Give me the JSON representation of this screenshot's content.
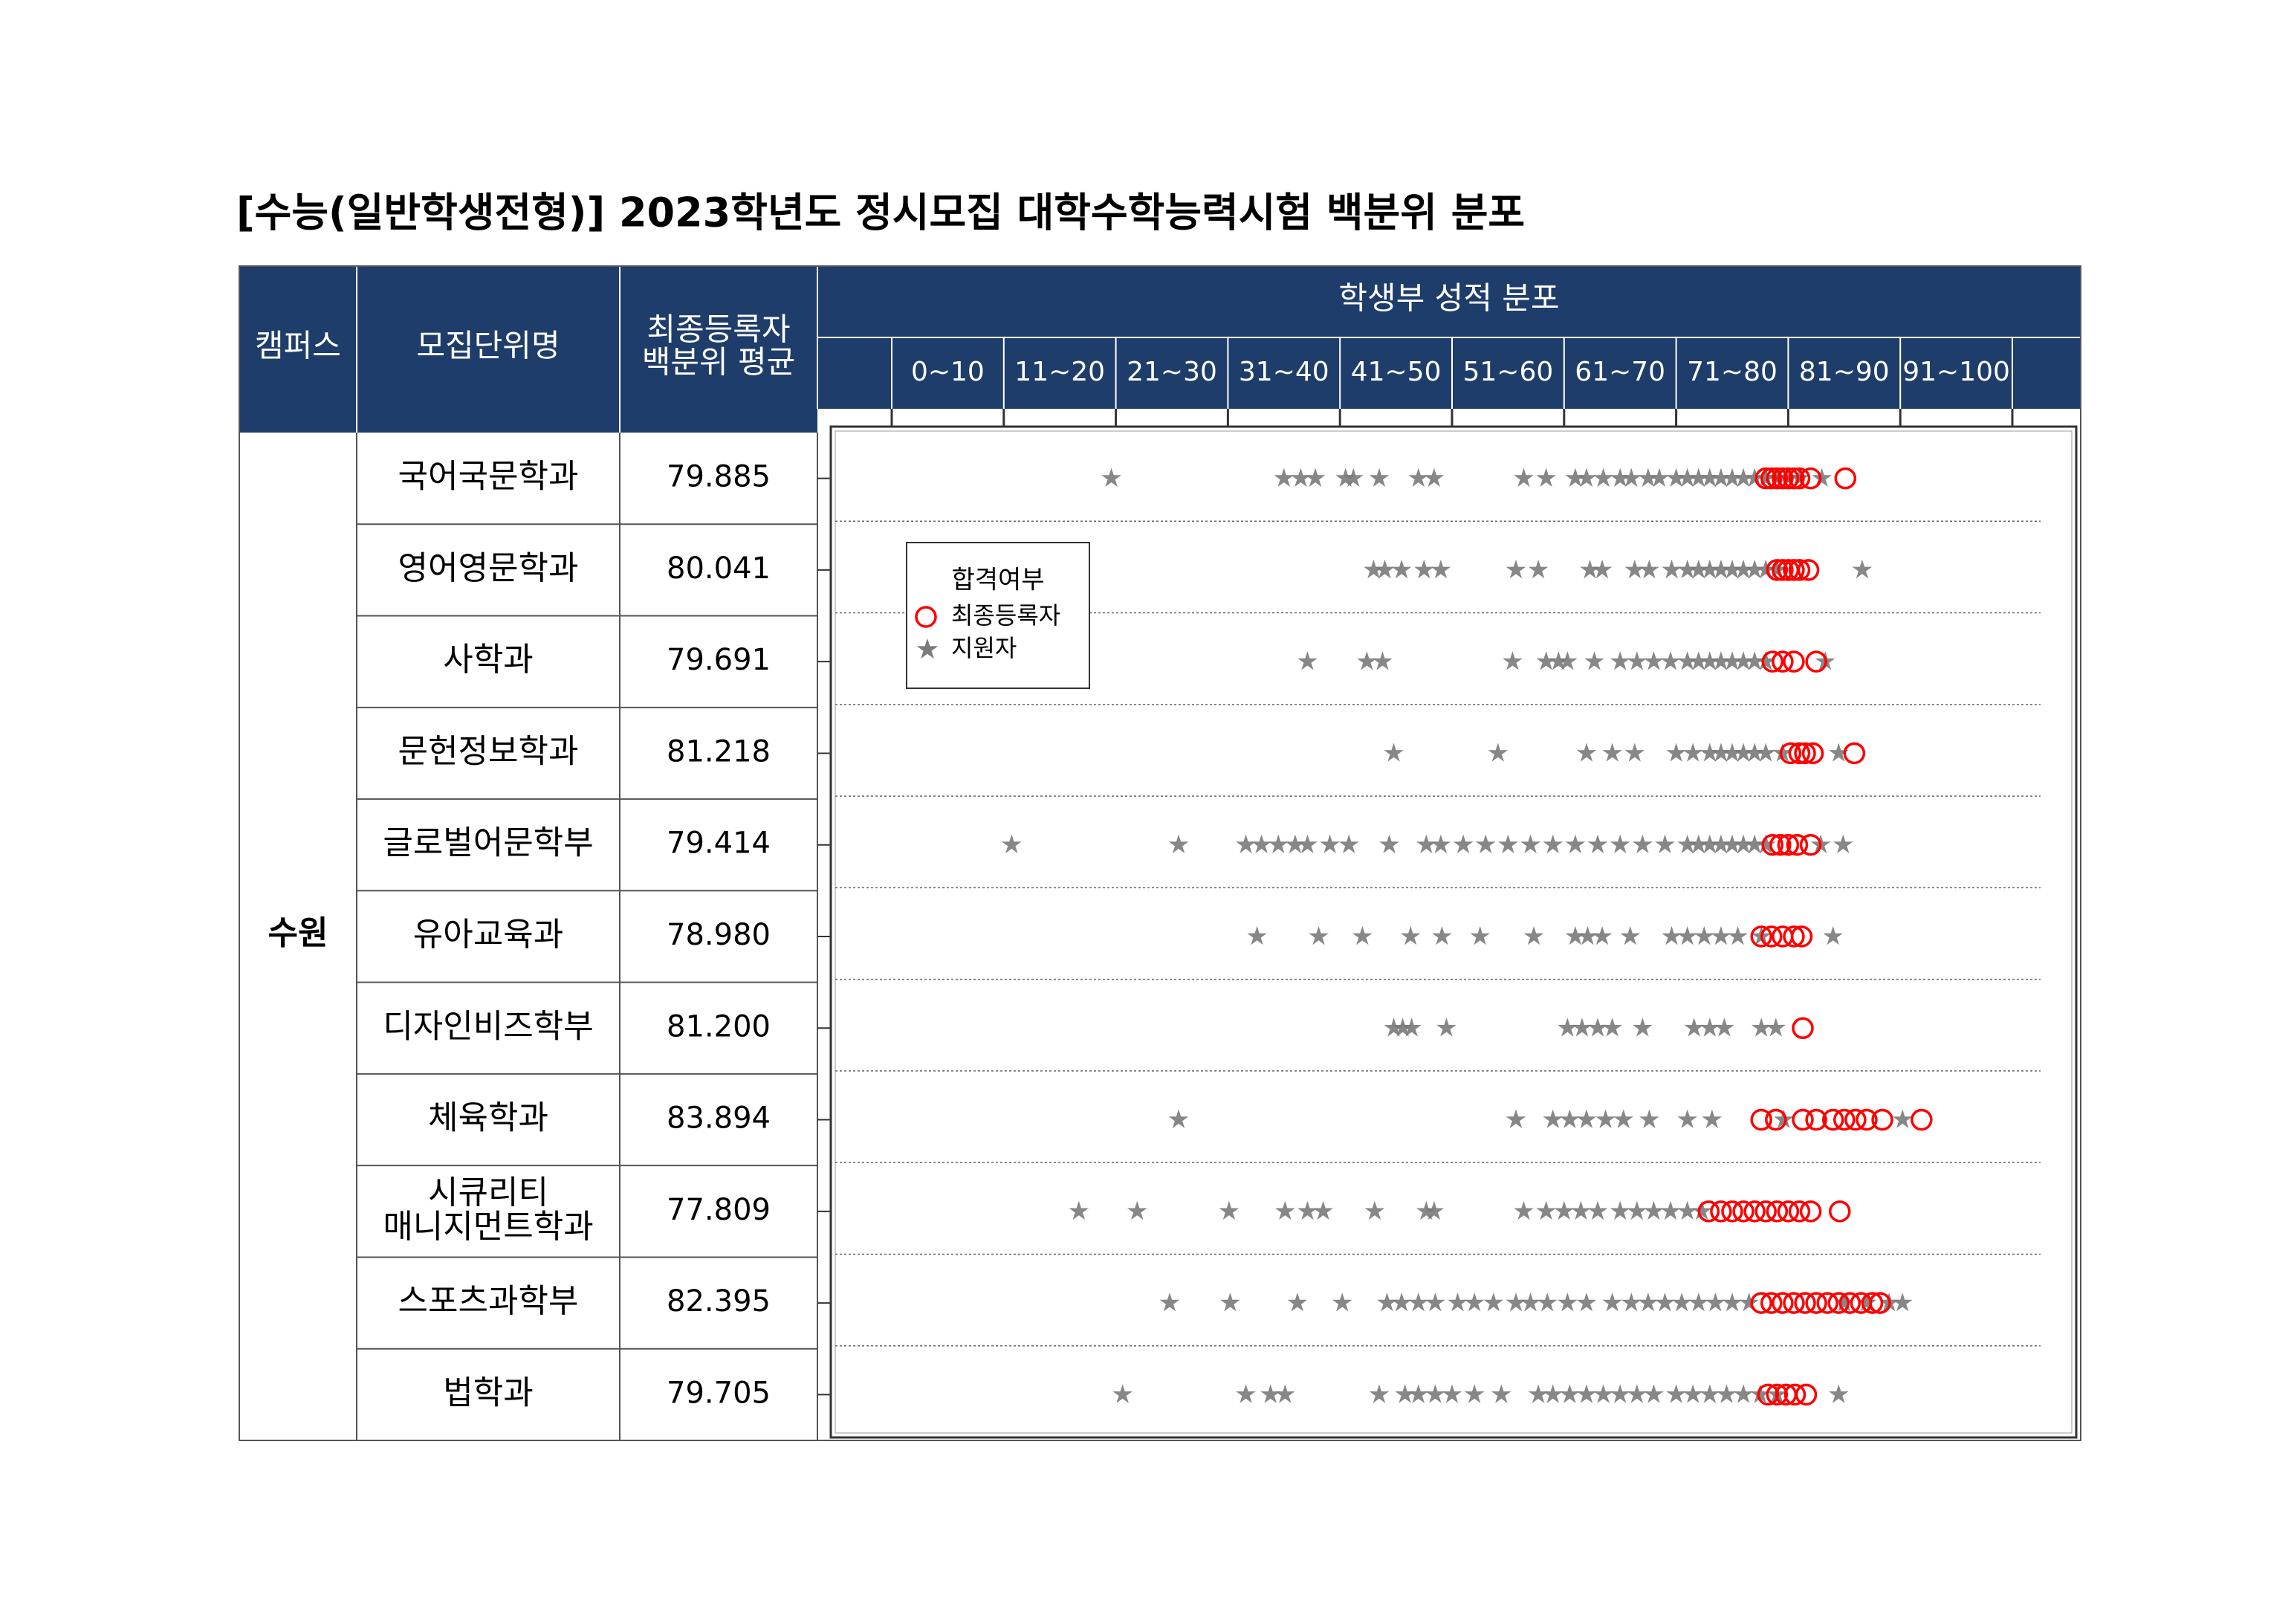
{
  "header": {
    "title": "[수능(일반학생전형)]  2023학년도  정시모집  대학수학능력시험  백분위  분포"
  },
  "table": {
    "campus_header": "캠퍼스",
    "unit_header": "모집단위명",
    "average_header": [
      "최종등록자",
      "백분위 평균"
    ],
    "distribution_header": "학생부 성적 분포",
    "bins": [
      "0~10",
      "11~20",
      "21~30",
      "31~40",
      "41~50",
      "51~60",
      "61~70",
      "71~80",
      "81~90",
      "91~100"
    ],
    "campus": "수원",
    "rows": [
      {
        "name": [
          "국어국문학과"
        ],
        "average": "79.885"
      },
      {
        "name": [
          "영어영문학과"
        ],
        "average": "80.041"
      },
      {
        "name": [
          "사학과"
        ],
        "average": "79.691"
      },
      {
        "name": [
          "문헌정보학과"
        ],
        "average": "81.218"
      },
      {
        "name": [
          "글로벌어문학부"
        ],
        "average": "79.414"
      },
      {
        "name": [
          "유아교육과"
        ],
        "average": "78.980"
      },
      {
        "name": [
          "디자인비즈학부"
        ],
        "average": "81.200"
      },
      {
        "name": [
          "체육학과"
        ],
        "average": "83.894"
      },
      {
        "name": [
          "시큐리티",
          "매니지먼트학과"
        ],
        "average": "77.809"
      },
      {
        "name": [
          "스포츠과학부"
        ],
        "average": "82.395"
      },
      {
        "name": [
          "법학과"
        ],
        "average": "79.705"
      }
    ]
  },
  "distribution": {
    "xlim": [
      0,
      100
    ],
    "xticks": [
      0,
      10,
      20,
      30,
      40,
      50,
      60,
      70,
      80,
      90,
      100
    ],
    "legend": {
      "title": "합격여부",
      "registrant": "최종등록자",
      "applicant": "지원자"
    },
    "registrant_color": "#ff0000",
    "applicant_color": "#7a7a7a",
    "rows": [
      {
        "applicants": [
          19.6,
          35,
          36.5,
          37.8,
          40.5,
          41.2,
          43.5,
          47,
          48.4,
          56.4,
          58.4,
          61,
          62,
          63.5,
          65,
          66,
          67.5,
          68.5,
          70,
          71,
          72,
          73,
          74,
          75,
          76,
          77,
          78,
          79,
          80,
          81,
          83
        ],
        "registrants": [
          78,
          78.5,
          79,
          79.5,
          80,
          80.5,
          81,
          82,
          85.1
        ]
      },
      {
        "applicants": [
          43,
          44,
          45.5,
          47.5,
          49,
          55.7,
          57.7,
          62.3,
          63.4,
          66.3,
          67.6,
          69.6,
          71,
          72,
          73,
          74,
          75,
          76,
          77,
          78,
          79,
          86.6
        ],
        "registrants": [
          79,
          79.5,
          80,
          80.5,
          81,
          81.8
        ]
      },
      {
        "applicants": [
          37.1,
          42.4,
          43.8,
          55.4,
          58.4,
          59.5,
          60.3,
          62.7,
          65,
          66.5,
          68,
          69.5,
          71,
          72,
          73,
          74,
          75,
          76,
          77,
          78,
          83.3
        ],
        "registrants": [
          78.6,
          79.5,
          80.5,
          82.5
        ]
      },
      {
        "applicants": [
          44.8,
          54.1,
          62,
          64.3,
          66.3,
          70,
          71.5,
          73,
          74,
          75,
          76,
          77,
          78,
          79.5,
          84.5
        ],
        "registrants": [
          80.2,
          81,
          81.5,
          82.2,
          85.9
        ]
      },
      {
        "applicants": [
          10.7,
          25.6,
          31.6,
          33,
          34.5,
          36,
          37.1,
          39.1,
          40.8,
          44.4,
          47.7,
          49,
          51,
          53,
          55,
          57,
          59,
          61,
          63,
          65,
          67,
          69,
          71,
          72,
          73,
          74,
          75,
          76,
          77,
          78,
          82.9,
          84.9
        ],
        "registrants": [
          78.6,
          79.3,
          80,
          80.8,
          82
        ]
      },
      {
        "applicants": [
          32.6,
          38.1,
          42,
          46.3,
          49.1,
          52.5,
          57.3,
          61,
          62.1,
          63.4,
          65.9,
          69.6,
          71,
          72.5,
          74,
          75.5,
          77.6,
          84
        ],
        "registrants": [
          77.6,
          78.5,
          79.5,
          80.5,
          81.2
        ]
      },
      {
        "applicants": [
          44.8,
          45.6,
          46.4,
          49.5,
          60.3,
          61.6,
          63,
          64.3,
          67,
          71.6,
          73,
          74.3,
          77.6,
          78.9
        ],
        "registrants": [
          81.3
        ]
      },
      {
        "applicants": [
          25.6,
          55.7,
          59,
          60.5,
          62,
          63.7,
          65.3,
          67.6,
          71,
          73.2,
          79.6,
          90.2
        ],
        "registrants": [
          77.6,
          78.9,
          81.3,
          82.5,
          84,
          85,
          86,
          87,
          88.4,
          91.9
        ]
      },
      {
        "applicants": [
          16.7,
          21.9,
          30.1,
          35.1,
          37.1,
          38.5,
          43.1,
          47.7,
          48.4,
          56.4,
          58.4,
          60,
          61.5,
          63,
          65,
          66.5,
          68,
          69.5,
          71,
          72.3
        ],
        "registrants": [
          72.9,
          74,
          75,
          76,
          77,
          78,
          79,
          80,
          81,
          82,
          84.6
        ]
      },
      {
        "applicants": [
          24.8,
          30.2,
          36.2,
          40.2,
          44.2,
          45.5,
          47,
          48.5,
          50.5,
          52,
          53.7,
          55.7,
          57,
          58.5,
          60.3,
          62,
          64.3,
          66,
          67.5,
          69,
          70.5,
          72,
          73.5,
          75,
          76.5,
          85,
          87,
          89,
          90.2
        ],
        "registrants": [
          77.6,
          78.5,
          79.5,
          80.5,
          81.5,
          82.5,
          83.5,
          84.5,
          85.5,
          86.5,
          87.5,
          88.2
        ]
      },
      {
        "applicants": [
          20.6,
          31.6,
          33.8,
          35.1,
          43.5,
          45.8,
          47,
          48.5,
          50,
          52,
          54.4,
          57.7,
          59,
          60.5,
          62,
          63.5,
          65,
          66.5,
          68,
          70,
          71.5,
          73,
          74.5,
          76,
          77.5,
          79,
          84.5
        ],
        "registrants": [
          78.2,
          79,
          79.8,
          80.6,
          81.6
        ]
      }
    ]
  }
}
